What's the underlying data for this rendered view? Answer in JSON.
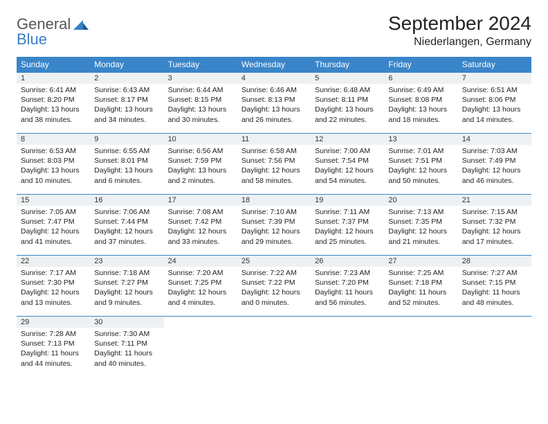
{
  "logo": {
    "general": "General",
    "blue": "Blue"
  },
  "title": "September 2024",
  "location": "Niederlangen, Germany",
  "colors": {
    "header_bg": "#3a85c9",
    "header_text": "#ffffff",
    "daynum_bg": "#eef1f3",
    "border": "#3a85c9",
    "logo_gray": "#555555",
    "logo_blue": "#3a7fc4"
  },
  "days_of_week": [
    "Sunday",
    "Monday",
    "Tuesday",
    "Wednesday",
    "Thursday",
    "Friday",
    "Saturday"
  ],
  "weeks": [
    [
      {
        "n": "1",
        "sunrise": "6:41 AM",
        "sunset": "8:20 PM",
        "daylight": "13 hours and 38 minutes."
      },
      {
        "n": "2",
        "sunrise": "6:43 AM",
        "sunset": "8:17 PM",
        "daylight": "13 hours and 34 minutes."
      },
      {
        "n": "3",
        "sunrise": "6:44 AM",
        "sunset": "8:15 PM",
        "daylight": "13 hours and 30 minutes."
      },
      {
        "n": "4",
        "sunrise": "6:46 AM",
        "sunset": "8:13 PM",
        "daylight": "13 hours and 26 minutes."
      },
      {
        "n": "5",
        "sunrise": "6:48 AM",
        "sunset": "8:11 PM",
        "daylight": "13 hours and 22 minutes."
      },
      {
        "n": "6",
        "sunrise": "6:49 AM",
        "sunset": "8:08 PM",
        "daylight": "13 hours and 18 minutes."
      },
      {
        "n": "7",
        "sunrise": "6:51 AM",
        "sunset": "8:06 PM",
        "daylight": "13 hours and 14 minutes."
      }
    ],
    [
      {
        "n": "8",
        "sunrise": "6:53 AM",
        "sunset": "8:03 PM",
        "daylight": "13 hours and 10 minutes."
      },
      {
        "n": "9",
        "sunrise": "6:55 AM",
        "sunset": "8:01 PM",
        "daylight": "13 hours and 6 minutes."
      },
      {
        "n": "10",
        "sunrise": "6:56 AM",
        "sunset": "7:59 PM",
        "daylight": "13 hours and 2 minutes."
      },
      {
        "n": "11",
        "sunrise": "6:58 AM",
        "sunset": "7:56 PM",
        "daylight": "12 hours and 58 minutes."
      },
      {
        "n": "12",
        "sunrise": "7:00 AM",
        "sunset": "7:54 PM",
        "daylight": "12 hours and 54 minutes."
      },
      {
        "n": "13",
        "sunrise": "7:01 AM",
        "sunset": "7:51 PM",
        "daylight": "12 hours and 50 minutes."
      },
      {
        "n": "14",
        "sunrise": "7:03 AM",
        "sunset": "7:49 PM",
        "daylight": "12 hours and 46 minutes."
      }
    ],
    [
      {
        "n": "15",
        "sunrise": "7:05 AM",
        "sunset": "7:47 PM",
        "daylight": "12 hours and 41 minutes."
      },
      {
        "n": "16",
        "sunrise": "7:06 AM",
        "sunset": "7:44 PM",
        "daylight": "12 hours and 37 minutes."
      },
      {
        "n": "17",
        "sunrise": "7:08 AM",
        "sunset": "7:42 PM",
        "daylight": "12 hours and 33 minutes."
      },
      {
        "n": "18",
        "sunrise": "7:10 AM",
        "sunset": "7:39 PM",
        "daylight": "12 hours and 29 minutes."
      },
      {
        "n": "19",
        "sunrise": "7:11 AM",
        "sunset": "7:37 PM",
        "daylight": "12 hours and 25 minutes."
      },
      {
        "n": "20",
        "sunrise": "7:13 AM",
        "sunset": "7:35 PM",
        "daylight": "12 hours and 21 minutes."
      },
      {
        "n": "21",
        "sunrise": "7:15 AM",
        "sunset": "7:32 PM",
        "daylight": "12 hours and 17 minutes."
      }
    ],
    [
      {
        "n": "22",
        "sunrise": "7:17 AM",
        "sunset": "7:30 PM",
        "daylight": "12 hours and 13 minutes."
      },
      {
        "n": "23",
        "sunrise": "7:18 AM",
        "sunset": "7:27 PM",
        "daylight": "12 hours and 9 minutes."
      },
      {
        "n": "24",
        "sunrise": "7:20 AM",
        "sunset": "7:25 PM",
        "daylight": "12 hours and 4 minutes."
      },
      {
        "n": "25",
        "sunrise": "7:22 AM",
        "sunset": "7:22 PM",
        "daylight": "12 hours and 0 minutes."
      },
      {
        "n": "26",
        "sunrise": "7:23 AM",
        "sunset": "7:20 PM",
        "daylight": "11 hours and 56 minutes."
      },
      {
        "n": "27",
        "sunrise": "7:25 AM",
        "sunset": "7:18 PM",
        "daylight": "11 hours and 52 minutes."
      },
      {
        "n": "28",
        "sunrise": "7:27 AM",
        "sunset": "7:15 PM",
        "daylight": "11 hours and 48 minutes."
      }
    ],
    [
      {
        "n": "29",
        "sunrise": "7:28 AM",
        "sunset": "7:13 PM",
        "daylight": "11 hours and 44 minutes."
      },
      {
        "n": "30",
        "sunrise": "7:30 AM",
        "sunset": "7:11 PM",
        "daylight": "11 hours and 40 minutes."
      },
      null,
      null,
      null,
      null,
      null
    ]
  ],
  "labels": {
    "sunrise": "Sunrise: ",
    "sunset": "Sunset: ",
    "daylight": "Daylight: "
  }
}
